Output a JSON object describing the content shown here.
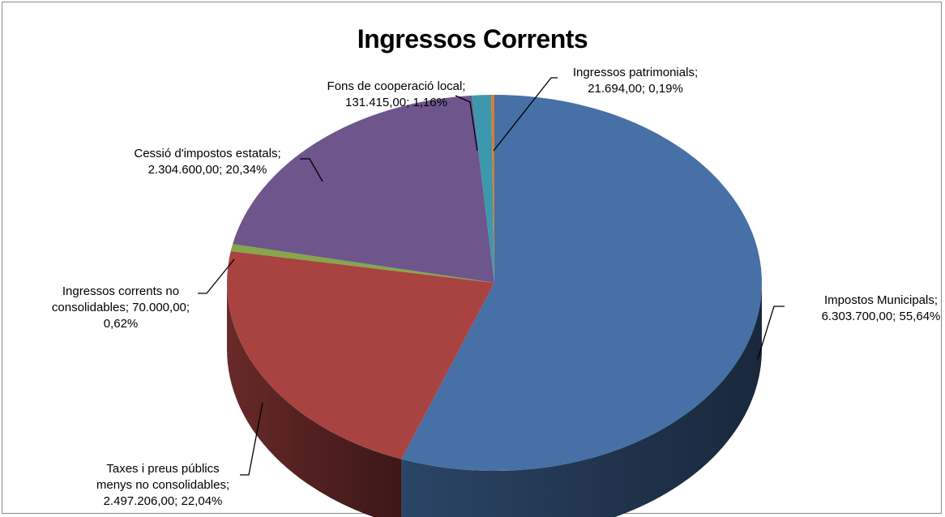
{
  "chart_data": {
    "type": "pie",
    "title": "Ingressos Corrents",
    "slices": [
      {
        "name": "Impostos Municipals",
        "value_text": "6.303.700,00",
        "value": 6303700.0,
        "percent_text": "55,64%",
        "color": "#4670a6"
      },
      {
        "name": "Taxes i preus públics menys no consolidables",
        "value_text": "2.497.206,00",
        "value": 2497206.0,
        "percent_text": "22,04%",
        "color": "#a84341"
      },
      {
        "name": "Ingressos corrents no consolidables",
        "value_text": "70.000,00",
        "value": 70000.0,
        "percent_text": "0,62%",
        "color": "#86a64a"
      },
      {
        "name": "Cessió d'impostos estatals",
        "value_text": "2.304.600,00",
        "value": 2304600.0,
        "percent_text": "20,34%",
        "color": "#6e558c"
      },
      {
        "name": "Fons de cooperació local",
        "value_text": "131.415,00",
        "value": 131415.0,
        "percent_text": "1,16%",
        "color": "#3d98ad"
      },
      {
        "name": "Ingressos patrimonials",
        "value_text": "21.694,00",
        "value": 21694.0,
        "percent_text": "0,19%",
        "color": "#dc7b2c"
      }
    ],
    "labels": [
      [
        "Impostos Municipals;",
        "6.303.700,00; 55,64%"
      ],
      [
        "Taxes i preus públics",
        "menys no consolidables;",
        "2.497.206,00; 22,04%"
      ],
      [
        "Ingressos corrents no",
        "consolidables; 70.000,00;",
        "0,62%"
      ],
      [
        "Cessió d'impostos estatals;",
        "2.304.600,00; 20,34%"
      ],
      [
        "Fons de cooperació local;",
        "131.415,00; 1,16%"
      ],
      [
        "Ingressos patrimonials;",
        "21.694,00; 0,19%"
      ]
    ]
  }
}
